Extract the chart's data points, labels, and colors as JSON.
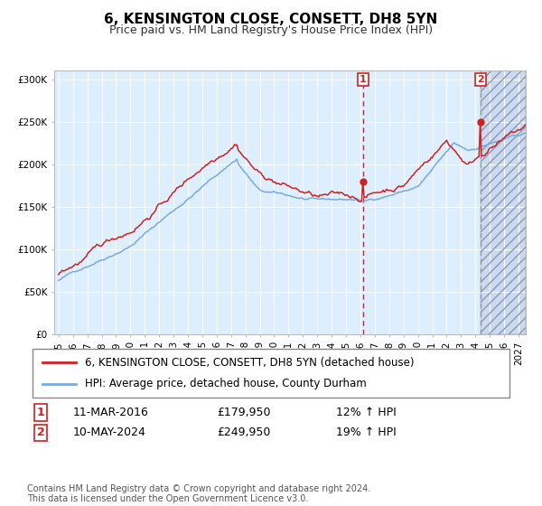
{
  "title": "6, KENSINGTON CLOSE, CONSETT, DH8 5YN",
  "subtitle": "Price paid vs. HM Land Registry's House Price Index (HPI)",
  "ylabel_ticks": [
    "£0",
    "£50K",
    "£100K",
    "£150K",
    "£200K",
    "£250K",
    "£300K"
  ],
  "ytick_vals": [
    0,
    50000,
    100000,
    150000,
    200000,
    250000,
    300000
  ],
  "ylim": [
    0,
    310000
  ],
  "xlim_start": 1994.7,
  "xlim_end": 2027.5,
  "transaction1_date": 2016.19,
  "transaction1_price": 179950,
  "transaction1_label": "1",
  "transaction2_date": 2024.37,
  "transaction2_price": 249950,
  "transaction2_label": "2",
  "hpi_color": "#7aaadd",
  "price_color": "#cc2222",
  "background_plot": "#ddeeff",
  "grid_color": "#ffffff",
  "legend_line1": "6, KENSINGTON CLOSE, CONSETT, DH8 5YN (detached house)",
  "legend_line2": "HPI: Average price, detached house, County Durham",
  "annot1_date": "11-MAR-2016",
  "annot1_price": "£179,950",
  "annot1_hpi": "12% ↑ HPI",
  "annot2_date": "10-MAY-2024",
  "annot2_price": "£249,950",
  "annot2_hpi": "19% ↑ HPI",
  "footnote": "Contains HM Land Registry data © Crown copyright and database right 2024.\nThis data is licensed under the Open Government Licence v3.0.",
  "title_fontsize": 11,
  "subtitle_fontsize": 9,
  "tick_fontsize": 7.5,
  "legend_fontsize": 8.5,
  "annot_fontsize": 9,
  "footnote_fontsize": 7
}
